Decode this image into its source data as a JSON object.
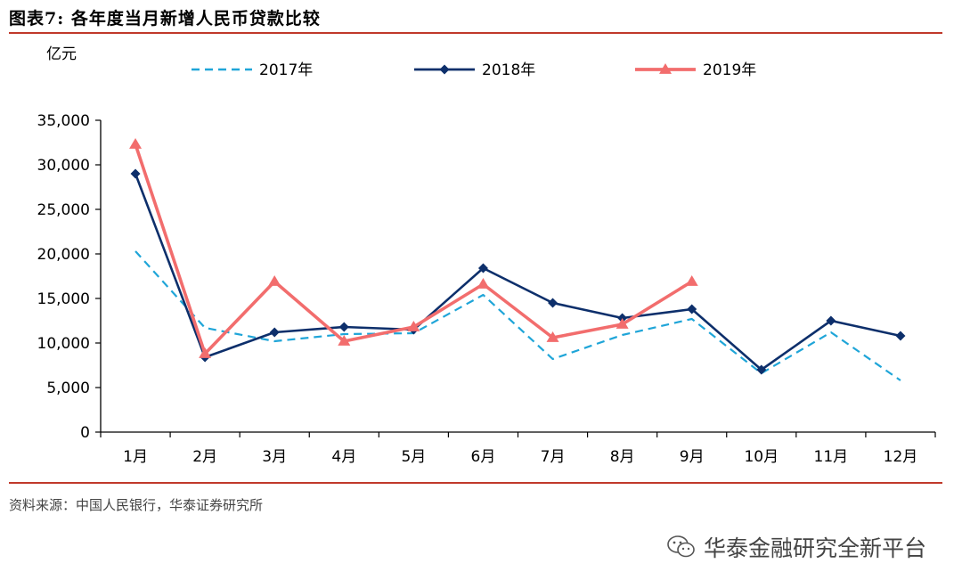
{
  "figure_title": "图表7:  各年度当月新增人民币贷款比较",
  "source_note": "资料来源：中国人民银行，华泰证券研究所",
  "watermark_text": "华泰金融研究全新平台",
  "chart_data": {
    "type": "line",
    "title": "",
    "ylabel": "亿元",
    "xlabel": "",
    "categories": [
      "1月",
      "2月",
      "3月",
      "4月",
      "5月",
      "6月",
      "7月",
      "8月",
      "9月",
      "10月",
      "11月",
      "12月"
    ],
    "ylim": [
      0,
      35000
    ],
    "yticks": [
      0,
      5000,
      10000,
      15000,
      20000,
      25000,
      30000,
      35000
    ],
    "ytick_labels": [
      "0",
      "5,000",
      "10,000",
      "15,000",
      "20,000",
      "25,000",
      "30,000",
      "35,000"
    ],
    "grid": false,
    "legend_position": "top",
    "series": [
      {
        "name": "2017年",
        "color": "#1fa5d8",
        "style": "dashed",
        "marker": "none",
        "values": [
          20300,
          11700,
          10200,
          11000,
          11100,
          15400,
          8200,
          10900,
          12700,
          6600,
          11200,
          5800
        ]
      },
      {
        "name": "2018年",
        "color": "#0d2f6b",
        "style": "solid",
        "marker": "diamond",
        "values": [
          29000,
          8400,
          11200,
          11800,
          11500,
          18400,
          14500,
          12800,
          13800,
          7000,
          12500,
          10800
        ]
      },
      {
        "name": "2019年",
        "color": "#f26d6d",
        "style": "solid",
        "marker": "triangle",
        "values": [
          32300,
          8800,
          16900,
          10200,
          11800,
          16600,
          10600,
          12100,
          16900,
          null,
          null,
          null
        ]
      }
    ]
  }
}
